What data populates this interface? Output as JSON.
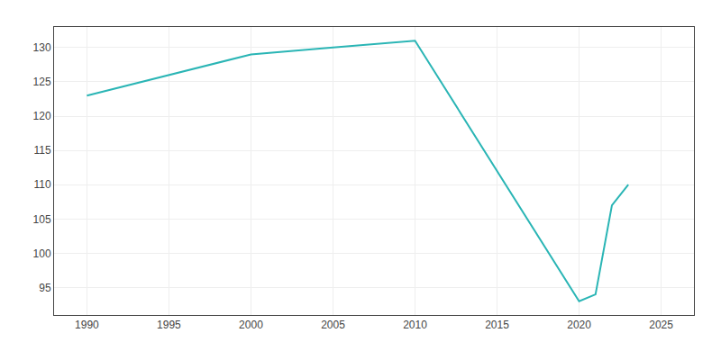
{
  "chart_data": {
    "type": "line",
    "x": [
      1990,
      1995,
      2000,
      2005,
      2010,
      2020,
      2021,
      2022,
      2023
    ],
    "values": [
      123,
      126,
      129,
      130,
      131,
      93,
      94,
      107,
      110
    ],
    "color": "#2ab5b5",
    "xlim": [
      1988,
      2027
    ],
    "ylim": [
      91,
      133
    ],
    "xticks": [
      1990,
      1995,
      2000,
      2005,
      2010,
      2015,
      2020,
      2025
    ],
    "yticks": [
      95,
      100,
      105,
      110,
      115,
      120,
      125,
      130
    ],
    "grid": true
  }
}
